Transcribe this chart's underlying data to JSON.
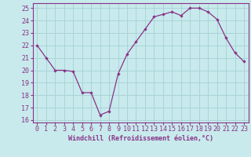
{
  "x": [
    0,
    1,
    2,
    3,
    4,
    5,
    6,
    7,
    8,
    9,
    10,
    11,
    12,
    13,
    14,
    15,
    16,
    17,
    18,
    19,
    20,
    21,
    22,
    23
  ],
  "y": [
    22.0,
    21.0,
    20.0,
    20.0,
    19.9,
    18.2,
    18.2,
    16.4,
    16.7,
    19.7,
    21.3,
    22.3,
    23.3,
    24.3,
    24.5,
    24.7,
    24.4,
    25.0,
    25.0,
    24.7,
    24.1,
    22.6,
    21.4,
    20.7
  ],
  "line_color": "#883388",
  "marker": "D",
  "marker_size": 2.2,
  "bg_color": "#c8eaec",
  "grid_color": "#aad4d8",
  "axis_color": "#883388",
  "tick_color": "#883388",
  "xlabel": "Windchill (Refroidissement éolien,°C)",
  "xlabel_fontsize": 6.0,
  "tick_fontsize": 6.0,
  "ylim": [
    15.8,
    25.4
  ],
  "xlim": [
    -0.5,
    23.5
  ],
  "yticks": [
    16,
    17,
    18,
    19,
    20,
    21,
    22,
    23,
    24,
    25
  ],
  "xticks": [
    0,
    1,
    2,
    3,
    4,
    5,
    6,
    7,
    8,
    9,
    10,
    11,
    12,
    13,
    14,
    15,
    16,
    17,
    18,
    19,
    20,
    21,
    22,
    23
  ]
}
